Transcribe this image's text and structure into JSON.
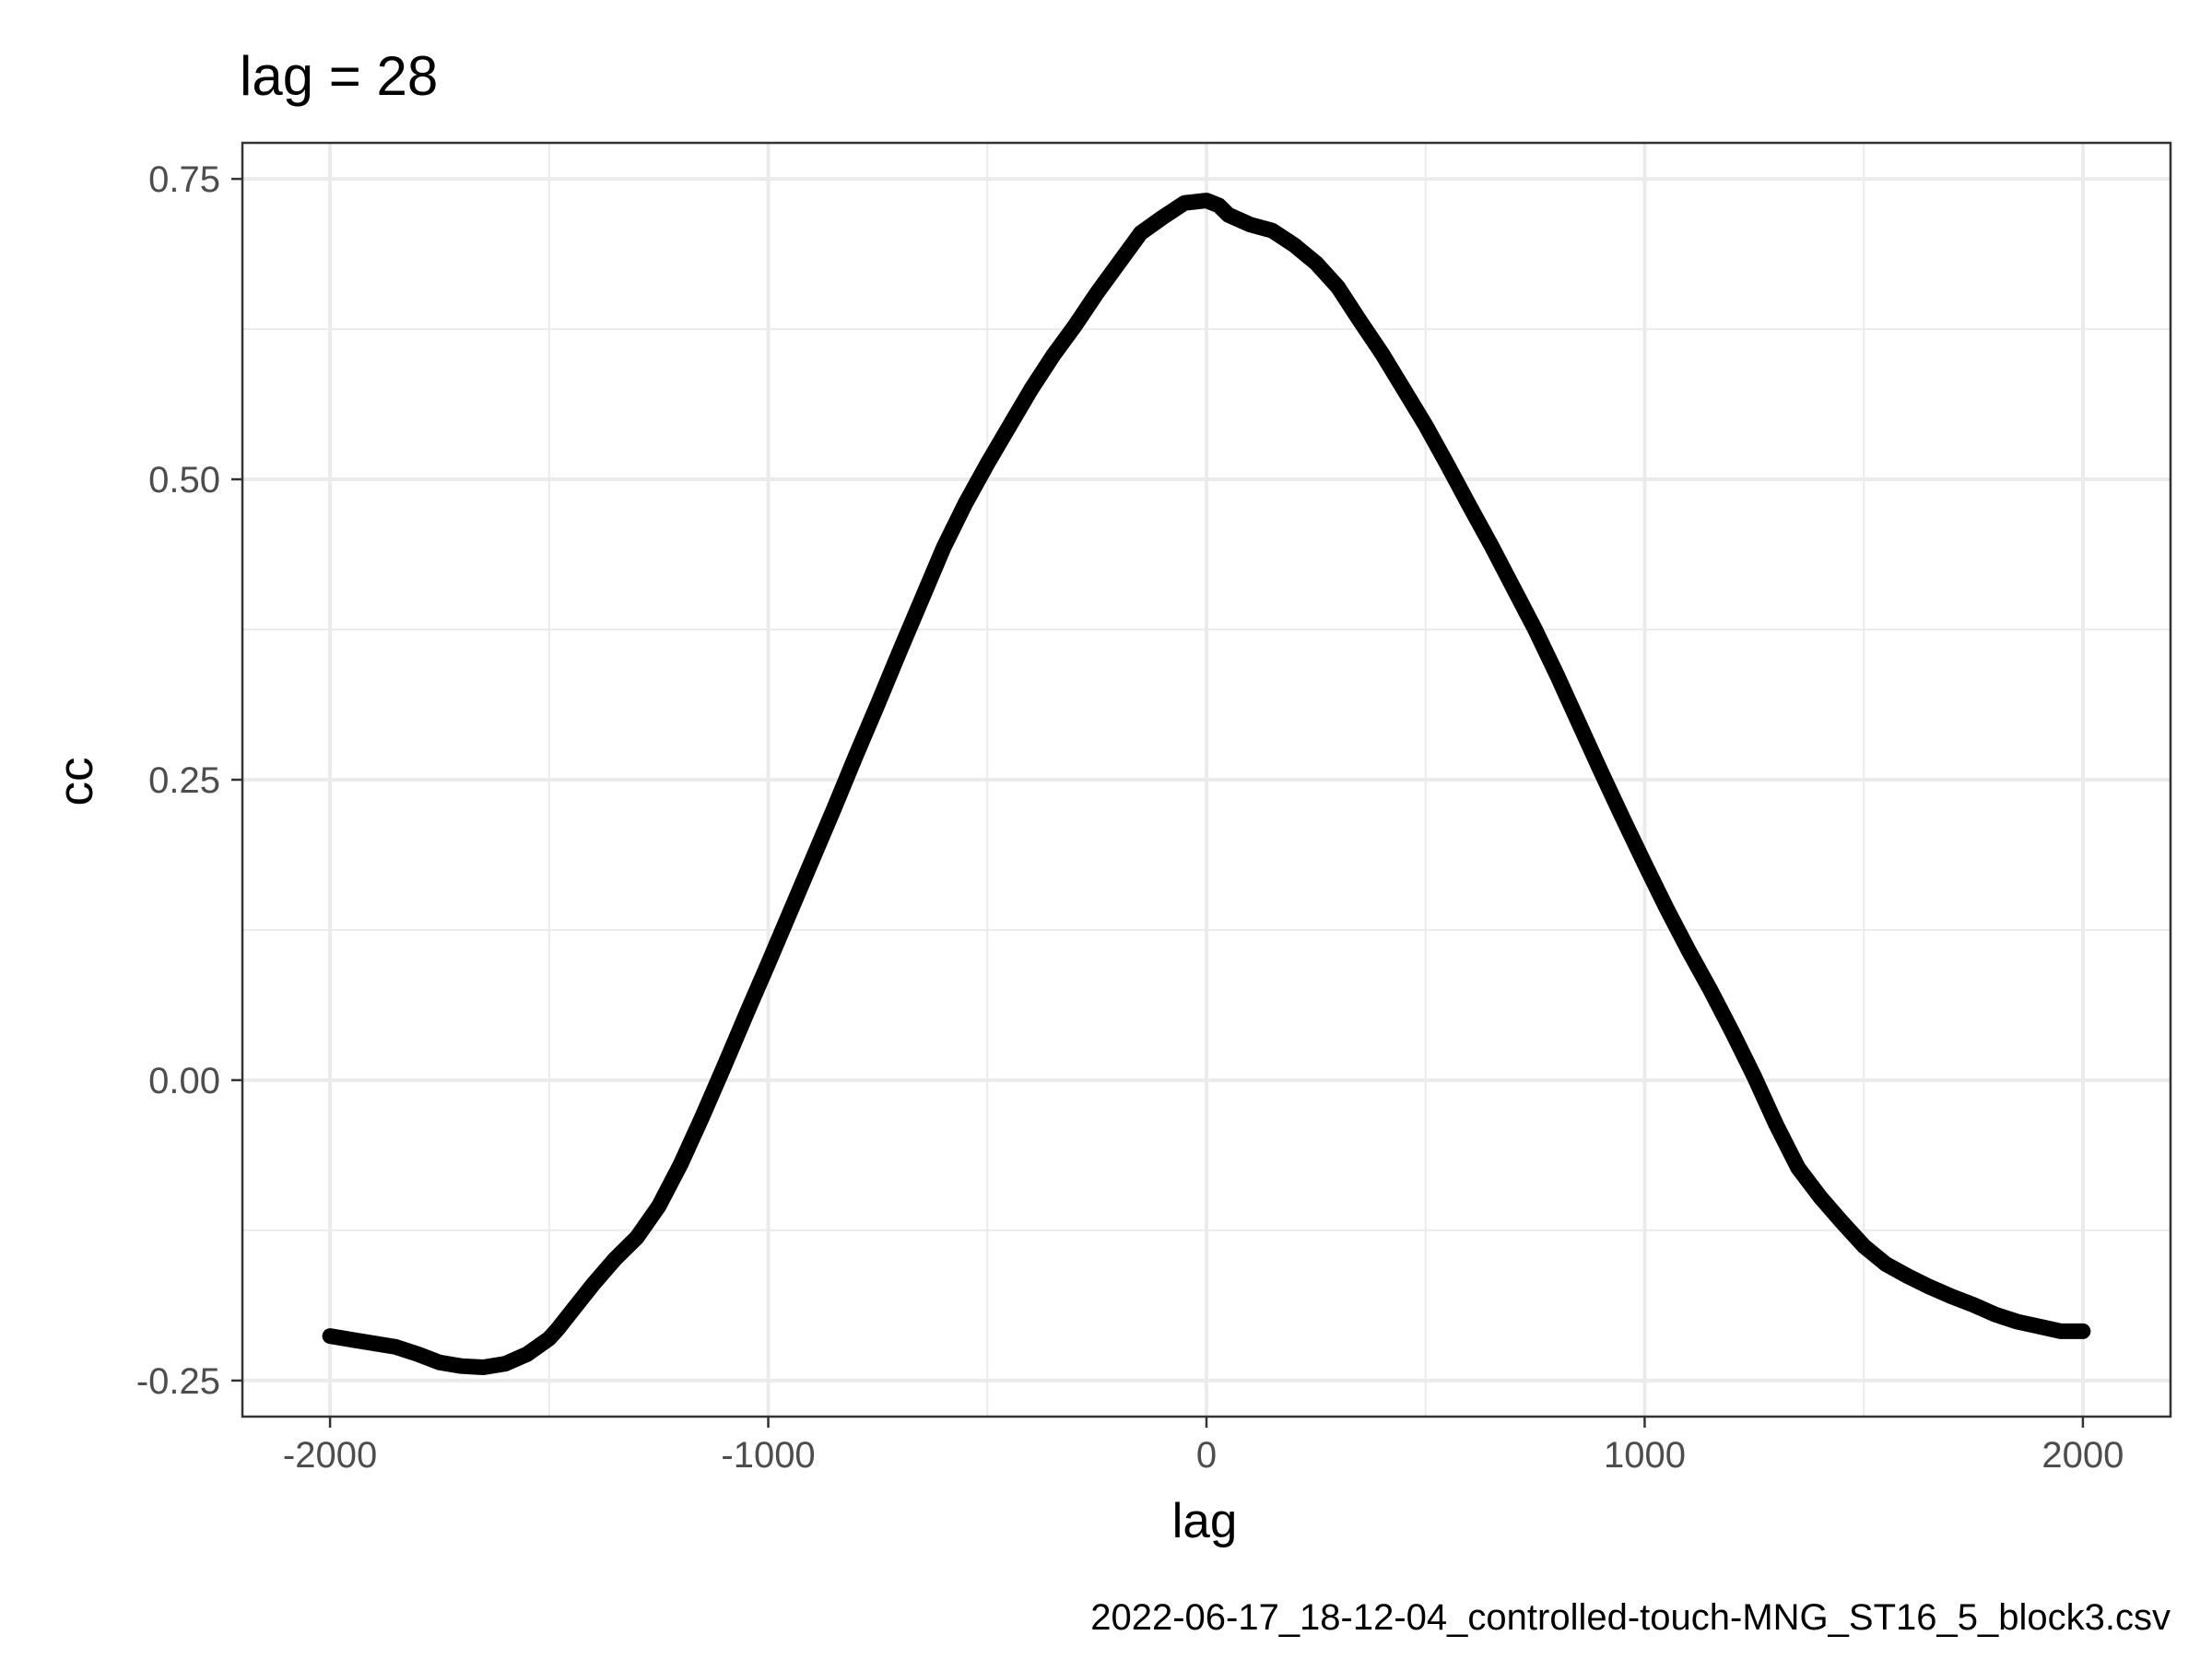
{
  "chart_data": {
    "type": "line",
    "title": "lag = 28",
    "xlabel": "lag",
    "ylabel": "cc",
    "caption": "2022-06-17_18-12-04_controlled-touch-MNG_ST16_5_block3.csv",
    "xlim": [
      -2200,
      2200
    ],
    "ylim": [
      -0.28,
      0.78
    ],
    "x_ticks": [
      -2000,
      -1000,
      0,
      1000,
      2000
    ],
    "x_tick_labels": [
      "-2000",
      "-1000",
      "0",
      "1000",
      "2000"
    ],
    "x_minor_ticks": [
      -1500,
      -500,
      500,
      1500
    ],
    "y_ticks": [
      -0.25,
      0.0,
      0.25,
      0.5,
      0.75
    ],
    "y_tick_labels": [
      "-0.25",
      "0.00",
      "0.25",
      "0.50",
      "0.75"
    ],
    "y_minor_ticks": [
      -0.125,
      0.125,
      0.375,
      0.625
    ],
    "grid": true,
    "colors": {
      "line": "#000000",
      "grid": "#ebebeb",
      "panel_border": "#333333",
      "tick_text": "#4d4d4d",
      "text": "#000000"
    },
    "series": [
      {
        "x": [
          -2000,
          -1950,
          -1900,
          -1850,
          -1800,
          -1750,
          -1700,
          -1650,
          -1600,
          -1550,
          -1500,
          -1480,
          -1450,
          -1400,
          -1350,
          -1300,
          -1250,
          -1200,
          -1150,
          -1100,
          -1050,
          -1000,
          -950,
          -900,
          -850,
          -800,
          -750,
          -700,
          -650,
          -600,
          -550,
          -500,
          -450,
          -400,
          -350,
          -300,
          -250,
          -200,
          -150,
          -100,
          -50,
          0,
          28,
          50,
          100,
          150,
          200,
          250,
          300,
          350,
          400,
          450,
          500,
          550,
          600,
          650,
          700,
          750,
          800,
          850,
          900,
          950,
          1000,
          1050,
          1100,
          1150,
          1200,
          1250,
          1300,
          1350,
          1400,
          1450,
          1500,
          1550,
          1600,
          1650,
          1700,
          1750,
          1800,
          1850,
          1900,
          1950,
          2000
        ],
        "y": [
          -0.213,
          -0.216,
          -0.219,
          -0.222,
          -0.228,
          -0.235,
          -0.238,
          -0.239,
          -0.236,
          -0.228,
          -0.215,
          -0.207,
          -0.193,
          -0.17,
          -0.149,
          -0.131,
          -0.105,
          -0.07,
          -0.03,
          0.012,
          0.055,
          0.097,
          0.14,
          0.183,
          0.226,
          0.27,
          0.313,
          0.357,
          0.4,
          0.443,
          0.48,
          0.513,
          0.544,
          0.575,
          0.603,
          0.628,
          0.655,
          0.68,
          0.705,
          0.718,
          0.73,
          0.732,
          0.728,
          0.72,
          0.712,
          0.707,
          0.695,
          0.68,
          0.66,
          0.632,
          0.605,
          0.575,
          0.545,
          0.512,
          0.478,
          0.445,
          0.41,
          0.375,
          0.337,
          0.297,
          0.257,
          0.218,
          0.18,
          0.143,
          0.108,
          0.075,
          0.04,
          0.003,
          -0.037,
          -0.073,
          -0.097,
          -0.118,
          -0.138,
          -0.153,
          -0.163,
          -0.172,
          -0.18,
          -0.187,
          -0.195,
          -0.201,
          -0.205,
          -0.209,
          -0.209
        ]
      }
    ]
  }
}
